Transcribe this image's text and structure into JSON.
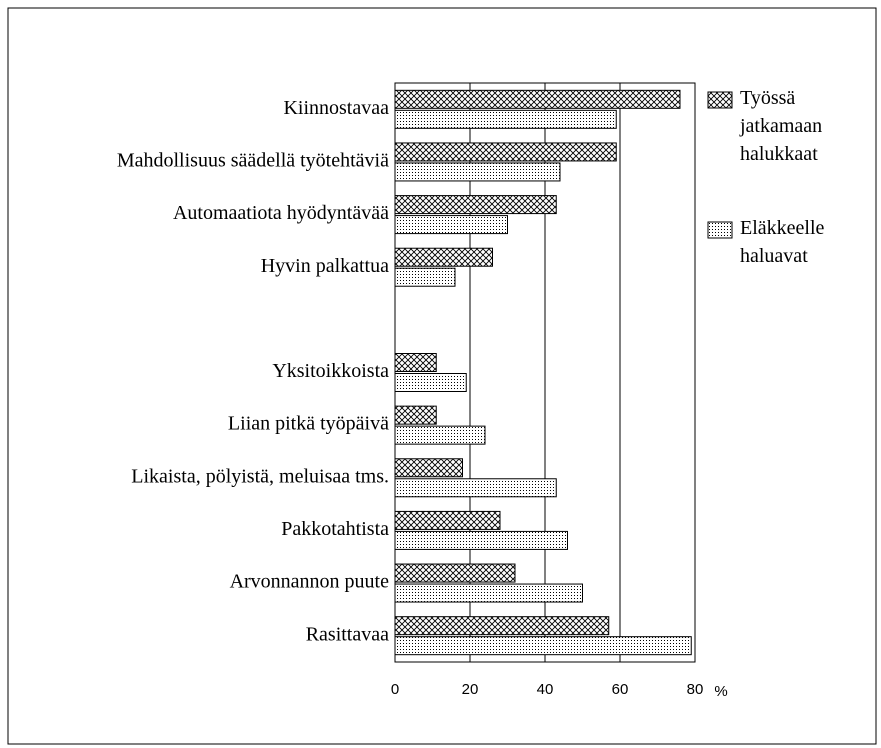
{
  "chart_data": {
    "type": "hbar",
    "categories": [
      "Kiinnostavaa",
      "Mahdollisuus säädellä työtehtäviä",
      "Automaatiota hyödyntävää",
      "Hyvin palkattua",
      null,
      "Yksitoikkoista",
      "Liian pitkä työpäivä",
      "Likaista, pölyistä, meluisaa tms.",
      "Pakkotahtista",
      "Arvonnannon puute",
      "Rasittavaa"
    ],
    "series": [
      {
        "name": "Työssä jatkamaan halukkaat",
        "color": "#000000",
        "pattern": "crosshatch",
        "values": [
          76,
          59,
          43,
          26,
          null,
          11,
          11,
          18,
          28,
          32,
          57
        ]
      },
      {
        "name": "Eläkkeelle haluavat",
        "color": "#000000",
        "pattern": "dots",
        "values": [
          59,
          44,
          30,
          16,
          null,
          19,
          24,
          43,
          46,
          50,
          79
        ]
      }
    ],
    "xlabel": "%",
    "xlim": [
      0,
      80
    ],
    "xticks": [
      0,
      20,
      40,
      60,
      80
    ],
    "grid": true,
    "legend": "right"
  }
}
